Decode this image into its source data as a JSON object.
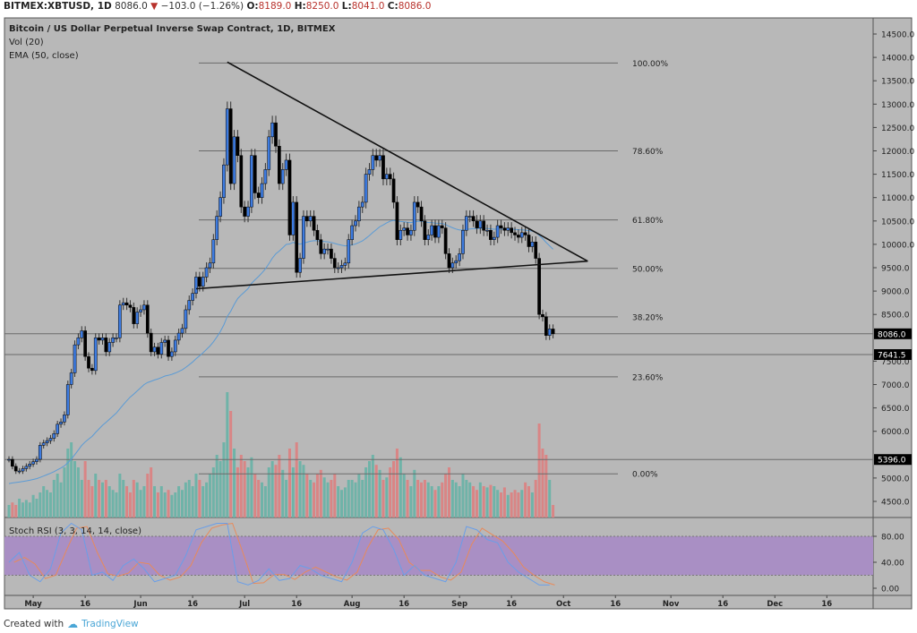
{
  "header": {
    "symbol": "BITMEX:XBTUSD, 1D",
    "last": "8086.0",
    "change": "−103.0 (−1.26%)",
    "o_label": "O:",
    "o": "8189.0",
    "h_label": "H:",
    "h": "8250.0",
    "l_label": "L:",
    "l": "8041.0",
    "c_label": "C:",
    "c": "8086.0"
  },
  "legend": {
    "title": "Bitcoin / US Dollar Perpetual Inverse Swap Contract, 1D, BITMEX",
    "vol": "Vol (20)",
    "ema": "EMA (50, close)"
  },
  "stoch_label": "Stoch RSI (3, 3, 14, 14, close)",
  "footer": {
    "created": "Created with",
    "brand": "TradingView"
  },
  "colors": {
    "up": "#3d7be0",
    "down": "#000000",
    "vol_up": "#6fb3a8",
    "vol_down": "#d98585",
    "ema": "#5b9bd5",
    "pane_bg": "#b8b8b8",
    "stoch_band": "#a98fc4",
    "stoch_k": "#6a9ee8",
    "stoch_d": "#e88a5a"
  },
  "chart_data": {
    "type": "candlestick",
    "start_date": "Apr 24",
    "ylim": [
      4200,
      14800
    ],
    "price_ticks": [
      "14500.0",
      "14000.0",
      "13500.0",
      "13000.0",
      "12500.0",
      "12000.0",
      "11500.0",
      "11000.0",
      "10500.0",
      "10000.0",
      "9500.0",
      "9000.0",
      "8500.0",
      "7500.0",
      "7000.0",
      "6500.0",
      "6000.0",
      "5000.0",
      "4500.0"
    ],
    "x_ticks": [
      {
        "label": "May",
        "day": 7
      },
      {
        "label": "16",
        "day": 22
      },
      {
        "label": "Jun",
        "day": 38
      },
      {
        "label": "16",
        "day": 53
      },
      {
        "label": "Jul",
        "day": 68
      },
      {
        "label": "16",
        "day": 83
      },
      {
        "label": "Aug",
        "day": 99
      },
      {
        "label": "16",
        "day": 114
      },
      {
        "label": "Sep",
        "day": 130
      },
      {
        "label": "16",
        "day": 145
      },
      {
        "label": "Oct",
        "day": 160
      },
      {
        "label": "16",
        "day": 175
      },
      {
        "label": "Nov",
        "day": 191
      },
      {
        "label": "16",
        "day": 206
      },
      {
        "label": "Dec",
        "day": 221
      },
      {
        "label": "16",
        "day": 236
      }
    ],
    "closes": [
      5400,
      5250,
      5150,
      5150,
      5200,
      5250,
      5300,
      5350,
      5400,
      5700,
      5750,
      5800,
      5850,
      5950,
      6150,
      6200,
      6350,
      7000,
      7250,
      7850,
      8000,
      8150,
      7600,
      7350,
      7300,
      8000,
      7950,
      8000,
      7700,
      7900,
      8000,
      8000,
      8700,
      8750,
      8700,
      8650,
      8300,
      8550,
      8600,
      8700,
      8100,
      7700,
      7800,
      7650,
      7900,
      7950,
      7600,
      7700,
      7950,
      8100,
      8200,
      8600,
      8800,
      8950,
      9300,
      9100,
      9300,
      9500,
      9600,
      10100,
      10600,
      11000,
      11700,
      12900,
      11300,
      12300,
      11900,
      10800,
      10600,
      10800,
      11900,
      11100,
      11000,
      11300,
      11600,
      12300,
      12600,
      12100,
      11300,
      11600,
      11800,
      10200,
      10900,
      9400,
      9700,
      10600,
      10500,
      10600,
      10300,
      10100,
      9800,
      9900,
      9900,
      9700,
      9500,
      9500,
      9550,
      9600,
      10100,
      10400,
      10500,
      10800,
      10900,
      11500,
      11600,
      11900,
      11800,
      11900,
      11400,
      11500,
      11400,
      10900,
      10100,
      10300,
      10350,
      10200,
      10300,
      10900,
      10800,
      10500,
      10100,
      10200,
      10400,
      10150,
      10400,
      10350,
      9800,
      9500,
      9600,
      9650,
      9800,
      10300,
      10600,
      10600,
      10500,
      10350,
      10500,
      10300,
      10300,
      10100,
      10150,
      10400,
      10350,
      10300,
      10350,
      10250,
      10200,
      10150,
      10250,
      10200,
      9950,
      10050,
      9700,
      8500,
      8450,
      8050,
      8189,
      8086
    ],
    "volume": [
      10,
      12,
      10,
      15,
      12,
      14,
      12,
      18,
      15,
      20,
      25,
      22,
      20,
      30,
      35,
      28,
      40,
      55,
      60,
      45,
      40,
      30,
      45,
      30,
      25,
      35,
      30,
      28,
      30,
      25,
      22,
      20,
      35,
      30,
      25,
      20,
      30,
      28,
      22,
      25,
      35,
      40,
      25,
      20,
      25,
      20,
      22,
      18,
      20,
      25,
      22,
      28,
      30,
      25,
      35,
      30,
      25,
      28,
      35,
      40,
      50,
      45,
      60,
      100,
      85,
      55,
      40,
      50,
      45,
      40,
      48,
      35,
      30,
      28,
      25,
      40,
      45,
      42,
      50,
      38,
      30,
      55,
      40,
      60,
      45,
      42,
      35,
      30,
      28,
      35,
      38,
      32,
      28,
      30,
      35,
      25,
      22,
      24,
      30,
      30,
      28,
      35,
      30,
      40,
      45,
      50,
      42,
      38,
      30,
      32,
      40,
      45,
      55,
      48,
      35,
      30,
      25,
      38,
      30,
      28,
      30,
      28,
      25,
      22,
      25,
      28,
      35,
      40,
      30,
      28,
      25,
      35,
      30,
      28,
      25,
      22,
      28,
      25,
      24,
      26,
      25,
      22,
      20,
      24,
      18,
      20,
      22,
      20,
      22,
      28,
      25,
      20,
      30,
      75,
      55,
      50,
      30,
      10
    ],
    "fib": {
      "high": 13880,
      "low": 5090,
      "levels": [
        {
          "pct": 1.0,
          "label": "100.00%"
        },
        {
          "pct": 0.786,
          "label": "78.60%"
        },
        {
          "pct": 0.618,
          "label": "61.80%"
        },
        {
          "pct": 0.5,
          "label": "50.00%"
        },
        {
          "pct": 0.382,
          "label": "38.20%"
        },
        {
          "pct": 0.236,
          "label": "23.60%"
        },
        {
          "pct": 0.0,
          "label": "0.00%"
        }
      ]
    },
    "trendlines": [
      {
        "from": {
          "day": 63,
          "price": 13900
        },
        "to": {
          "day": 167,
          "price": 9640
        }
      },
      {
        "from": {
          "day": 54,
          "price": 9050
        },
        "to": {
          "day": 167,
          "price": 9640
        }
      }
    ],
    "price_lines": [
      {
        "price": 8086.0,
        "label": "8086.0"
      },
      {
        "price": 7641.5,
        "label": "7641.5"
      },
      {
        "price": 5396.0,
        "label": "5396.0"
      }
    ],
    "stoch": {
      "ticks": [
        "80.00",
        "40.00",
        "0.00"
      ],
      "band": [
        20,
        80
      ],
      "step_days": 3,
      "k": [
        40,
        55,
        20,
        10,
        30,
        85,
        100,
        90,
        20,
        25,
        12,
        35,
        45,
        30,
        10,
        15,
        20,
        50,
        90,
        95,
        100,
        100,
        10,
        5,
        12,
        30,
        12,
        15,
        35,
        30,
        20,
        15,
        10,
        40,
        85,
        95,
        90,
        60,
        20,
        35,
        20,
        15,
        10,
        40,
        95,
        90,
        75,
        70,
        40,
        25,
        15,
        5,
        5
      ]
    }
  }
}
